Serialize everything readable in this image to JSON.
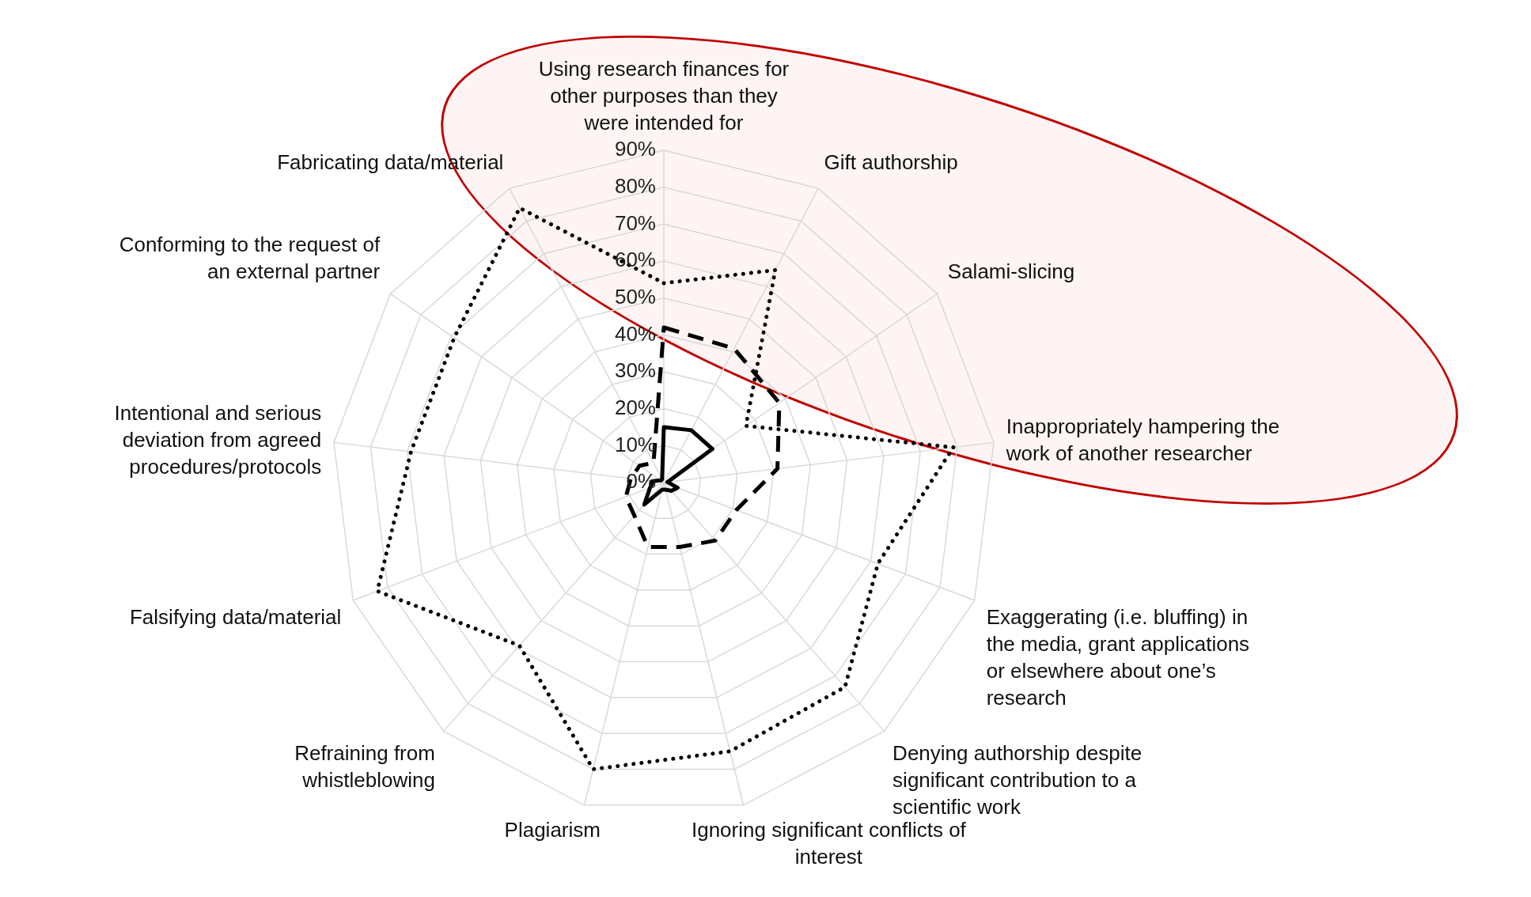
{
  "chart_data": {
    "type": "radar",
    "categories": [
      "Using research finances for\nother purposes than they\nwere intended for",
      "Gift authorship",
      "Salami-slicing",
      "Inappropriately hampering the\nwork of another researcher",
      "Exaggerating (i.e. bluffing) in\nthe media, grant applications\nor elsewhere about one’s\nresearch",
      "Denying authorship despite\nsignificant contribution to a\nscientific work",
      "Ignoring significant conflicts of\ninterest",
      "Plagiarism",
      "Refraining from\nwhistleblowing",
      "Falsifying data/material",
      "Intentional and serious\ndeviation from agreed\nprocedures/protocols",
      "Conforming to the request of\nan external partner",
      "Fabricating data/material"
    ],
    "series": [
      {
        "color": "#000000",
        "line_style": "dotted",
        "values": [
          54,
          65,
          27,
          79,
          62,
          74,
          75,
          80,
          59,
          83,
          69,
          69,
          84
        ]
      },
      {
        "color": "#000000",
        "line_style": "dashed",
        "values": [
          42,
          41,
          38,
          31,
          21,
          21,
          18,
          18,
          12,
          11,
          9,
          8,
          6
        ]
      },
      {
        "color": "#000000",
        "line_style": "solid",
        "values": [
          15,
          16,
          16,
          1,
          4,
          3,
          2,
          2,
          8,
          4,
          3,
          1,
          1
        ]
      }
    ],
    "ylim": [
      0,
      90
    ],
    "yticks": [
      {
        "value": 0,
        "label": "0%"
      },
      {
        "value": 10,
        "label": "10%"
      },
      {
        "value": 20,
        "label": "20%"
      },
      {
        "value": 30,
        "label": "30%"
      },
      {
        "value": 40,
        "label": "40%"
      },
      {
        "value": 50,
        "label": "50%"
      },
      {
        "value": 60,
        "label": "60%"
      },
      {
        "value": 70,
        "label": "70%"
      },
      {
        "value": 80,
        "label": "80%"
      },
      {
        "value": 90,
        "label": "90%"
      }
    ],
    "grid": true,
    "legend": false,
    "marker": "none"
  }
}
